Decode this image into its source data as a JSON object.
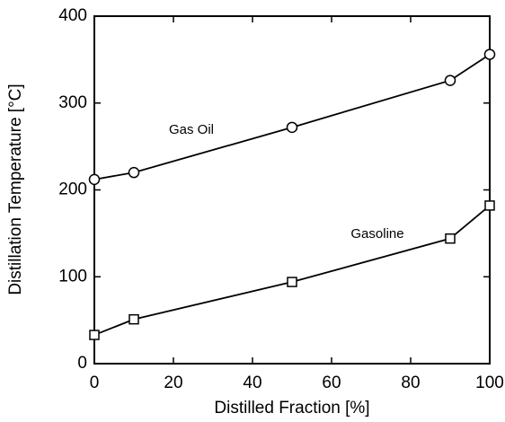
{
  "chart_data": {
    "type": "line",
    "x_label": "Distilled Fraction [%]",
    "y_label": "Distillation Temperature [°C]",
    "x": [
      0,
      10,
      50,
      90,
      100
    ],
    "series": [
      {
        "name": "Gas Oil",
        "color": "#000000",
        "marker": "circle",
        "values": [
          212,
          220,
          272,
          326,
          356
        ]
      },
      {
        "name": "Gasoline",
        "color": "#000000",
        "marker": "square",
        "values": [
          33,
          51,
          94,
          144,
          182
        ]
      }
    ],
    "xlim": [
      0,
      100
    ],
    "xticks": [
      0,
      20,
      40,
      60,
      80,
      100
    ],
    "ylim": [
      0,
      400
    ],
    "yticks": [
      0,
      100,
      200,
      300,
      400
    ],
    "grid": false
  }
}
